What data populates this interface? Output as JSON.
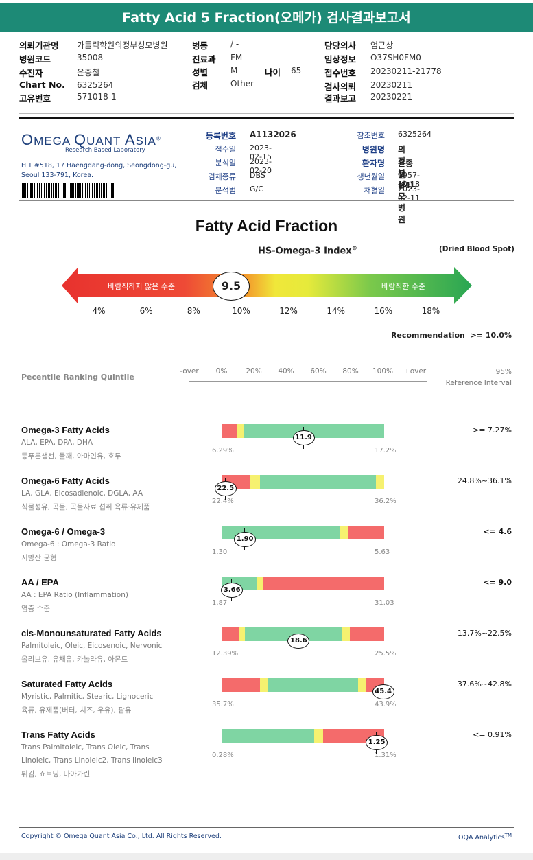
{
  "title": "Fatty Acid 5 Fraction(오메가) 검사결과보고서",
  "header": {
    "left": [
      {
        "label": "의뢰기관명",
        "value": "가톨릭학원의정부성모병원"
      },
      {
        "label": "병원코드",
        "value": "35008"
      },
      {
        "label": "수진자",
        "value": "윤종철"
      },
      {
        "label": "Chart No.",
        "value": "6325264"
      },
      {
        "label": "고유번호",
        "value": "571018-1"
      }
    ],
    "mid": [
      {
        "label": "병동",
        "value": "/ -"
      },
      {
        "label": "진료과",
        "value": "FM"
      },
      {
        "label": "성별",
        "value": "M"
      },
      {
        "label": "검체",
        "value": "Other"
      }
    ],
    "age_label": "나이",
    "age_value": "65",
    "right": [
      {
        "label": "담당의사",
        "value": "엄근상"
      },
      {
        "label": "임상정보",
        "value": "O37SH0FM0"
      },
      {
        "label": "접수번호",
        "value": "20230211-21778"
      },
      {
        "label": "검사의뢰",
        "value": "20230211"
      },
      {
        "label": "결과보고",
        "value": "20230221"
      }
    ]
  },
  "lab": {
    "logo_o": "O",
    "logo_mega": "MEGA ",
    "logo_q": "Q",
    "logo_uant": "UANT ",
    "logo_a": "A",
    "logo_sia": "SIA",
    "logo_reg": "®",
    "subtitle": "Research Based Laboratory",
    "address1": "HIT #518, 17 Haengdang-dong, Seongdong-gu,",
    "address2": "Seoul 133-791, Korea."
  },
  "info": {
    "left": [
      {
        "label": "등록번호",
        "value": "A1132026",
        "bold": true
      },
      {
        "label": "접수일",
        "value": "2023-02-15"
      },
      {
        "label": "분석일",
        "value": "2023-02-20"
      },
      {
        "label": "검체종류",
        "value": "DBS"
      },
      {
        "label": "분석법",
        "value": "G/C"
      }
    ],
    "right": [
      {
        "label": "참조번호",
        "value": "6325264"
      },
      {
        "label": "병원명",
        "value": "의정부성모병원",
        "bold": true
      },
      {
        "label": "환자명",
        "value": "윤종철 (M)",
        "bold": true
      },
      {
        "label": "생년월일",
        "value": "1957-10-18"
      },
      {
        "label": "채혈일",
        "value": "2023-02-11"
      }
    ]
  },
  "main_title": "Fatty Acid Fraction",
  "index": {
    "title": "HS-Omega-3 Index",
    "title_sup": "®",
    "sample_type": "(Dried Blood Spot)",
    "value": 9.5,
    "value_label": "9.5",
    "left_text": "바람직하지 않은 수준",
    "right_text": "바람직한 수준",
    "ticks": [
      "4%",
      "6%",
      "8%",
      "10%",
      "12%",
      "14%",
      "16%",
      "18%"
    ],
    "recommendation_label": "Recommendation",
    "recommendation_value": ">= 10.0%"
  },
  "percentile": {
    "label": "Pecentile Ranking Quintile",
    "ticks": [
      "-over",
      "0%",
      "20%",
      "40%",
      "60%",
      "80%",
      "100%",
      "+over"
    ],
    "ref_top": "95%",
    "ref_bottom": "Reference Interval"
  },
  "colors": {
    "red": "#f46b6b",
    "yellow": "#f6f170",
    "green": "#7fd5a3",
    "teal": "#1d8a76"
  },
  "results": [
    {
      "title": "Omega-3 Fatty Acids",
      "subtitle": "ALA, EPA, DPA, DHA",
      "food": "등푸른생선, 들깨, 아마인유, 호두",
      "min": "6.29%",
      "max": "17.2%",
      "marker": "11.9",
      "marker_pos": 0.5,
      "reference": ">= 7.27%",
      "ref_bold": false,
      "segments": [
        {
          "color": "red",
          "from": 0,
          "to": 0.095
        },
        {
          "color": "yellow",
          "from": 0.095,
          "to": 0.135
        },
        {
          "color": "green",
          "from": 0.135,
          "to": 1
        }
      ]
    },
    {
      "title": "Omega-6 Fatty Acids",
      "subtitle": "LA, GLA, Eicosadienoic, DGLA, AA",
      "food": "식물성유, 곡물, 곡물사료 섭취 육류·유제품",
      "min": "22.4%",
      "max": "36.2%",
      "marker": "22.5",
      "marker_pos": 0.02,
      "reference": "24.8%~36.1%",
      "ref_bold": false,
      "segments": [
        {
          "color": "red",
          "from": 0,
          "to": 0.175
        },
        {
          "color": "yellow",
          "from": 0.175,
          "to": 0.235
        },
        {
          "color": "green",
          "from": 0.235,
          "to": 0.95
        },
        {
          "color": "yellow",
          "from": 0.95,
          "to": 1
        }
      ]
    },
    {
      "title": "Omega-6 / Omega-3",
      "subtitle": "Omega-6 : Omega-3 Ratio",
      "food": "지방산 균형",
      "min": "1.30",
      "max": "5.63",
      "marker": "1.90",
      "marker_pos": 0.14,
      "reference": "<= 4.6",
      "ref_bold": true,
      "segments": [
        {
          "color": "green",
          "from": 0,
          "to": 0.73
        },
        {
          "color": "yellow",
          "from": 0.73,
          "to": 0.78
        },
        {
          "color": "red",
          "from": 0.78,
          "to": 1
        }
      ]
    },
    {
      "title": "AA / EPA",
      "subtitle": "AA : EPA Ratio (Inflammation)",
      "food": "염증 수준",
      "min": "1.87",
      "max": "31.03",
      "marker": "3.66",
      "marker_pos": 0.06,
      "reference": "<= 9.0",
      "ref_bold": true,
      "segments": [
        {
          "color": "green",
          "from": 0,
          "to": 0.215
        },
        {
          "color": "yellow",
          "from": 0.215,
          "to": 0.255
        },
        {
          "color": "red",
          "from": 0.255,
          "to": 1
        }
      ]
    },
    {
      "title": "cis-Monounsaturated Fatty Acids",
      "subtitle": "Palmitoleic, Oleic, Eicosenoic, Nervonic",
      "food": "올리브유, 유채유, 카놀라유, 아몬드",
      "min": "12.39%",
      "max": "25.5%",
      "marker": "18.6",
      "marker_pos": 0.47,
      "reference": "13.7%~22.5%",
      "ref_bold": false,
      "segments": [
        {
          "color": "red",
          "from": 0,
          "to": 0.105
        },
        {
          "color": "yellow",
          "from": 0.105,
          "to": 0.145
        },
        {
          "color": "green",
          "from": 0.145,
          "to": 0.74
        },
        {
          "color": "yellow",
          "from": 0.74,
          "to": 0.79
        },
        {
          "color": "red",
          "from": 0.79,
          "to": 1
        }
      ]
    },
    {
      "title": "Saturated Fatty Acids",
      "subtitle": "Myristic, Palmitic, Stearic, Lignoceric",
      "food": "육류, 유제품(버터, 치즈, 우유), 팜유",
      "min": "35.7%",
      "max": "43.9%",
      "marker": "45.4",
      "marker_pos": 0.99,
      "reference": "37.6%~42.8%",
      "ref_bold": false,
      "segments": [
        {
          "color": "red",
          "from": 0,
          "to": 0.235
        },
        {
          "color": "yellow",
          "from": 0.235,
          "to": 0.285
        },
        {
          "color": "green",
          "from": 0.285,
          "to": 0.84
        },
        {
          "color": "yellow",
          "from": 0.84,
          "to": 0.885
        },
        {
          "color": "red",
          "from": 0.885,
          "to": 1
        }
      ]
    },
    {
      "title": "Trans Fatty Acids",
      "subtitle": "Trans Palmitoleic, Trans Oleic, Trans",
      "subtitle2": "Linoleic, Trans Linoleic2, Trans linoleic3",
      "food": "튀김, 쇼트닝, 마아가린",
      "min": "0.28%",
      "max": "1.31%",
      "marker": "1.25",
      "marker_pos": 0.95,
      "reference": "<= 0.91%",
      "ref_bold": false,
      "segments": [
        {
          "color": "green",
          "from": 0,
          "to": 0.57
        },
        {
          "color": "yellow",
          "from": 0.57,
          "to": 0.625
        },
        {
          "color": "red",
          "from": 0.625,
          "to": 1
        }
      ]
    }
  ],
  "footer": {
    "copyright": "Copyright © Omega Quant Asia Co., Ltd.  All Rights Reserved.",
    "brand": "OQA Analytics",
    "brand_sup": "TM"
  }
}
